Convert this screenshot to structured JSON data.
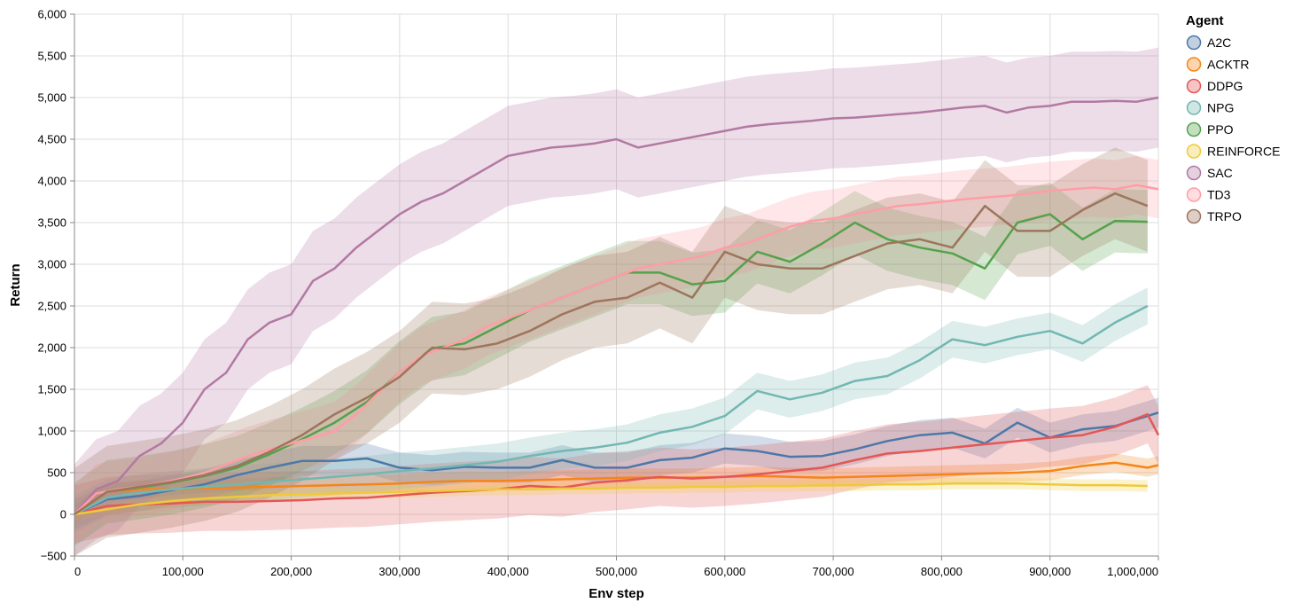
{
  "chart_data": {
    "type": "line",
    "xlabel": "Env step",
    "ylabel": "Return",
    "xlim": [
      0,
      1000000
    ],
    "ylim": [
      -500,
      6000
    ],
    "x_ticks": [
      0,
      100000,
      200000,
      300000,
      400000,
      500000,
      600000,
      700000,
      800000,
      900000,
      1000000
    ],
    "x_tick_labels": [
      "0",
      "100,000",
      "200,000",
      "300,000",
      "400,000",
      "500,000",
      "600,000",
      "700,000",
      "800,000",
      "900,000",
      "1,000,000"
    ],
    "y_ticks": [
      -500,
      0,
      500,
      1000,
      1500,
      2000,
      2500,
      3000,
      3500,
      4000,
      4500,
      5000,
      5500,
      6000
    ],
    "y_tick_labels": [
      "−500",
      "0",
      "500",
      "1,000",
      "1,500",
      "2,000",
      "2,500",
      "3,000",
      "3,500",
      "4,000",
      "4,500",
      "5,000",
      "5,500",
      "6,000"
    ],
    "grid": true,
    "legend": {
      "title": "Agent",
      "position": "right"
    },
    "series": [
      {
        "name": "A2C",
        "color": "#4c78a8",
        "x": [
          0,
          30000,
          60000,
          90000,
          120000,
          150000,
          180000,
          210000,
          240000,
          270000,
          300000,
          330000,
          360000,
          390000,
          420000,
          450000,
          480000,
          510000,
          540000,
          570000,
          600000,
          630000,
          660000,
          690000,
          720000,
          750000,
          780000,
          810000,
          840000,
          870000,
          900000,
          930000,
          960000,
          990000,
          1000000
        ],
        "y": [
          0,
          180,
          220,
          290,
          360,
          470,
          560,
          640,
          640,
          670,
          560,
          530,
          570,
          560,
          560,
          650,
          560,
          560,
          650,
          680,
          790,
          760,
          690,
          700,
          780,
          880,
          950,
          980,
          850,
          1100,
          920,
          1020,
          1060,
          1180,
          1220
        ],
        "band": 180
      },
      {
        "name": "ACKTR",
        "color": "#f58518",
        "x": [
          0,
          30000,
          60000,
          90000,
          120000,
          150000,
          180000,
          210000,
          240000,
          270000,
          300000,
          330000,
          360000,
          390000,
          420000,
          450000,
          480000,
          510000,
          540000,
          570000,
          600000,
          630000,
          660000,
          690000,
          720000,
          750000,
          780000,
          810000,
          840000,
          870000,
          900000,
          930000,
          960000,
          990000,
          1000000
        ],
        "y": [
          0,
          270,
          300,
          300,
          310,
          320,
          330,
          340,
          350,
          360,
          370,
          390,
          400,
          400,
          410,
          420,
          430,
          440,
          440,
          440,
          450,
          460,
          450,
          440,
          450,
          460,
          470,
          480,
          490,
          500,
          520,
          580,
          620,
          560,
          590
        ],
        "band": 110
      },
      {
        "name": "DDPG",
        "color": "#e45756",
        "x": [
          0,
          30000,
          60000,
          90000,
          120000,
          150000,
          180000,
          210000,
          240000,
          270000,
          300000,
          330000,
          360000,
          390000,
          420000,
          450000,
          480000,
          510000,
          540000,
          570000,
          600000,
          630000,
          660000,
          690000,
          720000,
          750000,
          780000,
          810000,
          840000,
          870000,
          900000,
          930000,
          960000,
          990000,
          1000000
        ],
        "y": [
          0,
          100,
          120,
          130,
          150,
          150,
          160,
          170,
          190,
          200,
          230,
          260,
          280,
          300,
          340,
          320,
          380,
          410,
          450,
          430,
          450,
          480,
          520,
          560,
          650,
          730,
          760,
          800,
          840,
          880,
          920,
          950,
          1050,
          1200,
          950
        ],
        "band": 350
      },
      {
        "name": "NPG",
        "color": "#72b7b2",
        "x": [
          0,
          30000,
          60000,
          90000,
          120000,
          150000,
          180000,
          210000,
          240000,
          270000,
          300000,
          330000,
          360000,
          390000,
          420000,
          450000,
          480000,
          510000,
          540000,
          570000,
          600000,
          630000,
          660000,
          690000,
          720000,
          750000,
          780000,
          810000,
          840000,
          870000,
          900000,
          930000,
          960000,
          990000
        ],
        "y": [
          0,
          200,
          260,
          300,
          330,
          360,
          390,
          420,
          450,
          480,
          520,
          550,
          590,
          630,
          700,
          760,
          800,
          860,
          980,
          1050,
          1180,
          1480,
          1380,
          1460,
          1600,
          1660,
          1850,
          2100,
          2030,
          2130,
          2200,
          2050,
          2300,
          2500
        ],
        "band": 220
      },
      {
        "name": "PPO",
        "color": "#54a24b",
        "x": [
          0,
          30000,
          60000,
          90000,
          120000,
          150000,
          180000,
          210000,
          240000,
          270000,
          300000,
          330000,
          360000,
          390000,
          420000,
          450000,
          480000,
          510000,
          540000,
          570000,
          600000,
          630000,
          660000,
          690000,
          720000,
          750000,
          780000,
          810000,
          840000,
          870000,
          900000,
          930000,
          960000,
          990000
        ],
        "y": [
          0,
          270,
          320,
          380,
          460,
          560,
          720,
          900,
          1100,
          1350,
          1700,
          1990,
          2050,
          2250,
          2450,
          2600,
          2750,
          2900,
          2900,
          2760,
          2800,
          3150,
          3030,
          3250,
          3500,
          3300,
          3200,
          3130,
          2950,
          3500,
          3600,
          3300,
          3520,
          3510
        ],
        "band": 380
      },
      {
        "name": "REINFORCE",
        "color": "#eeca3b",
        "x": [
          0,
          30000,
          60000,
          90000,
          120000,
          150000,
          180000,
          210000,
          240000,
          270000,
          300000,
          330000,
          360000,
          390000,
          420000,
          450000,
          480000,
          510000,
          540000,
          570000,
          600000,
          630000,
          660000,
          690000,
          720000,
          750000,
          780000,
          810000,
          840000,
          870000,
          900000,
          930000,
          960000,
          990000
        ],
        "y": [
          0,
          60,
          120,
          160,
          190,
          210,
          230,
          240,
          250,
          260,
          270,
          280,
          290,
          300,
          300,
          310,
          310,
          320,
          320,
          330,
          330,
          340,
          340,
          350,
          350,
          360,
          360,
          370,
          370,
          370,
          360,
          350,
          350,
          340
        ],
        "band": 70
      },
      {
        "name": "SAC",
        "color": "#b279a2",
        "x": [
          0,
          20000,
          40000,
          60000,
          80000,
          100000,
          120000,
          140000,
          160000,
          180000,
          200000,
          220000,
          240000,
          260000,
          280000,
          300000,
          320000,
          340000,
          360000,
          380000,
          400000,
          420000,
          440000,
          460000,
          480000,
          500000,
          520000,
          540000,
          560000,
          580000,
          600000,
          620000,
          640000,
          660000,
          680000,
          700000,
          720000,
          740000,
          760000,
          780000,
          800000,
          820000,
          840000,
          860000,
          880000,
          900000,
          920000,
          940000,
          960000,
          980000,
          1000000
        ],
        "y": [
          0,
          300,
          400,
          700,
          850,
          1100,
          1500,
          1700,
          2100,
          2300,
          2400,
          2800,
          2950,
          3200,
          3400,
          3600,
          3750,
          3850,
          4000,
          4150,
          4300,
          4350,
          4400,
          4420,
          4450,
          4500,
          4400,
          4450,
          4500,
          4550,
          4600,
          4650,
          4680,
          4700,
          4720,
          4750,
          4760,
          4780,
          4800,
          4820,
          4850,
          4880,
          4900,
          4820,
          4880,
          4900,
          4950,
          4950,
          4960,
          4950,
          5000
        ],
        "band": 600
      },
      {
        "name": "TD3",
        "color": "#ff9da6",
        "x": [
          0,
          20000,
          40000,
          60000,
          80000,
          100000,
          120000,
          140000,
          160000,
          180000,
          200000,
          220000,
          240000,
          260000,
          280000,
          300000,
          320000,
          340000,
          360000,
          380000,
          400000,
          420000,
          440000,
          460000,
          480000,
          500000,
          520000,
          540000,
          560000,
          580000,
          600000,
          620000,
          640000,
          660000,
          680000,
          700000,
          720000,
          740000,
          760000,
          780000,
          800000,
          820000,
          840000,
          860000,
          880000,
          900000,
          920000,
          940000,
          960000,
          980000,
          1000000
        ],
        "y": [
          0,
          250,
          300,
          330,
          380,
          430,
          500,
          600,
          700,
          780,
          850,
          920,
          1000,
          1200,
          1450,
          1700,
          1900,
          2000,
          2100,
          2250,
          2350,
          2450,
          2550,
          2650,
          2750,
          2850,
          2950,
          3000,
          3050,
          3100,
          3200,
          3250,
          3350,
          3450,
          3520,
          3550,
          3600,
          3650,
          3700,
          3720,
          3750,
          3780,
          3800,
          3820,
          3850,
          3880,
          3900,
          3920,
          3900,
          3950,
          3900
        ],
        "band": 350
      },
      {
        "name": "TRPO",
        "color": "#9d755d",
        "x": [
          0,
          30000,
          60000,
          90000,
          120000,
          150000,
          180000,
          210000,
          240000,
          270000,
          300000,
          330000,
          360000,
          390000,
          420000,
          450000,
          480000,
          510000,
          540000,
          570000,
          600000,
          630000,
          660000,
          690000,
          720000,
          750000,
          780000,
          810000,
          840000,
          870000,
          900000,
          930000,
          960000,
          990000
        ],
        "y": [
          0,
          270,
          330,
          390,
          470,
          580,
          750,
          950,
          1200,
          1400,
          1650,
          2000,
          1980,
          2050,
          2200,
          2400,
          2550,
          2600,
          2780,
          2600,
          3150,
          3000,
          2950,
          2950,
          3100,
          3250,
          3300,
          3200,
          3700,
          3400,
          3400,
          3650,
          3850,
          3700
        ],
        "band": 550
      }
    ]
  }
}
